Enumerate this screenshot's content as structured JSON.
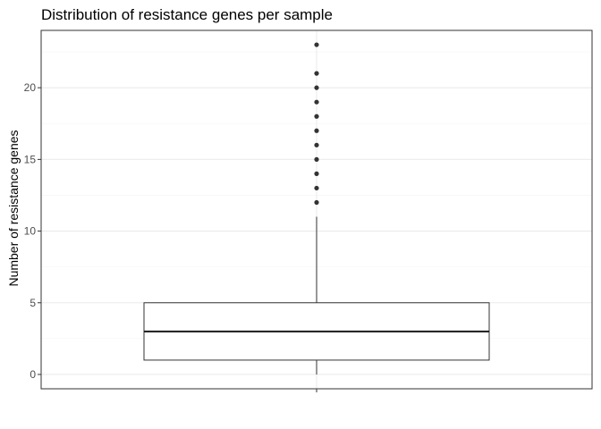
{
  "chart_data": {
    "type": "boxplot",
    "title": "Distribution of resistance genes per sample",
    "xlabel": "",
    "ylabel": "Number of resistance genes",
    "ylim": [
      -1,
      24
    ],
    "yticks": [
      0,
      5,
      10,
      15,
      20
    ],
    "grid": true,
    "box": {
      "whisker_low": 0,
      "q1": 1,
      "median": 3,
      "q3": 5,
      "whisker_high": 11
    },
    "outliers": [
      12,
      13,
      14,
      15,
      16,
      17,
      18,
      19,
      20,
      21,
      23
    ]
  },
  "colors": {
    "panel_border": "#333333",
    "grid_major": "#ebebeb",
    "grid_minor": "#f5f5f5",
    "box_line": "#333333",
    "median_line": "#1a1a1a",
    "outlier": "#333333",
    "tick": "#333333"
  }
}
